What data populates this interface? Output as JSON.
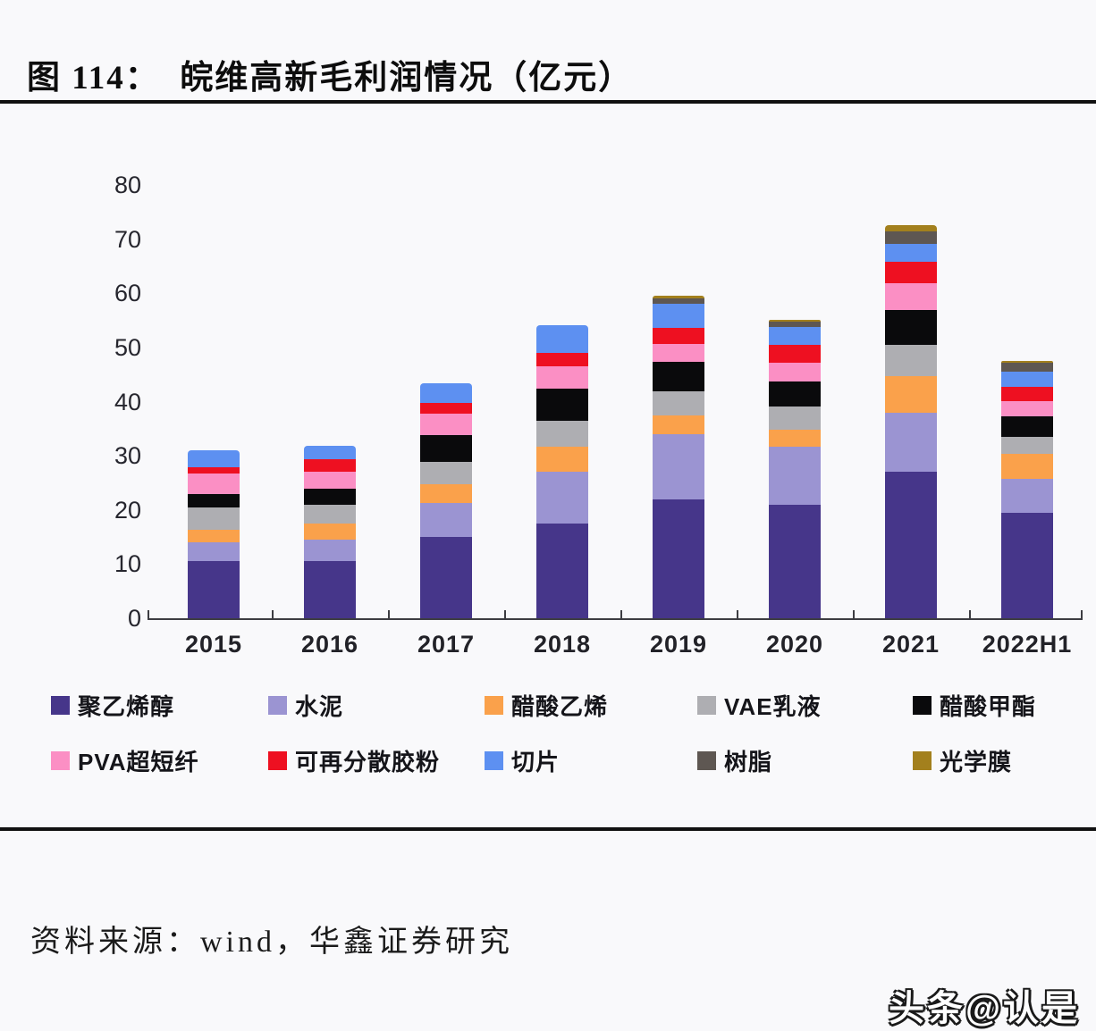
{
  "header": {
    "title": "图 114：  皖维高新毛利润情况（亿元）"
  },
  "source": {
    "text": "资料来源：wind，华鑫证券研究"
  },
  "watermark": {
    "text": "头条@认是"
  },
  "chart_data": {
    "type": "bar",
    "stacked": true,
    "title": "皖维高新毛利润情况（亿元）",
    "unit": "亿元",
    "grid": false,
    "legend_position": "bottom",
    "ylim": [
      0,
      80
    ],
    "yticks": [
      0,
      10,
      20,
      30,
      40,
      50,
      60,
      70,
      80
    ],
    "categories": [
      "2015",
      "2016",
      "2017",
      "2018",
      "2019",
      "2020",
      "2021",
      "2022H1"
    ],
    "series": [
      {
        "name": "聚乙烯醇",
        "color": "#46368a",
        "values": [
          10.5,
          10.5,
          15.0,
          17.5,
          22.0,
          21.0,
          27.0,
          19.5
        ]
      },
      {
        "name": "水泥",
        "color": "#9b94d2",
        "values": [
          3.5,
          4.0,
          6.3,
          9.5,
          12.0,
          10.7,
          11.0,
          6.3
        ]
      },
      {
        "name": "醋酸乙烯",
        "color": "#faa14b",
        "values": [
          2.3,
          3.0,
          3.5,
          4.6,
          3.4,
          3.1,
          6.7,
          4.6
        ]
      },
      {
        "name": "VAE乳液",
        "color": "#aeaeb2",
        "values": [
          4.1,
          3.5,
          4.0,
          4.8,
          4.5,
          4.3,
          5.8,
          3.1
        ]
      },
      {
        "name": "醋酸甲酯",
        "color": "#0a0a0c",
        "values": [
          2.5,
          3.0,
          5.0,
          6.0,
          5.4,
          4.6,
          6.4,
          3.7
        ]
      },
      {
        "name": "PVA超短纤",
        "color": "#fb8fc4",
        "values": [
          3.8,
          3.0,
          4.0,
          4.1,
          3.3,
          3.5,
          5.0,
          2.9
        ]
      },
      {
        "name": "可再分散胶粉",
        "color": "#ee1021",
        "values": [
          1.2,
          2.3,
          2.0,
          2.5,
          3.0,
          3.3,
          3.9,
          2.7
        ]
      },
      {
        "name": "切片",
        "color": "#5d90f1",
        "values": [
          3.1,
          2.6,
          3.6,
          5.1,
          4.4,
          3.3,
          3.3,
          2.8
        ]
      },
      {
        "name": "树脂",
        "color": "#5e5752",
        "values": [
          0,
          0,
          0,
          0,
          1.0,
          0.9,
          2.3,
          1.5
        ]
      },
      {
        "name": "光学膜",
        "color": "#a3801d",
        "values": [
          0,
          0,
          0,
          0,
          0.5,
          0.4,
          1.2,
          0.4
        ]
      }
    ],
    "totals": [
      31.0,
      31.9,
      43.4,
      54.1,
      59.5,
      55.1,
      72.6,
      47.5
    ]
  }
}
